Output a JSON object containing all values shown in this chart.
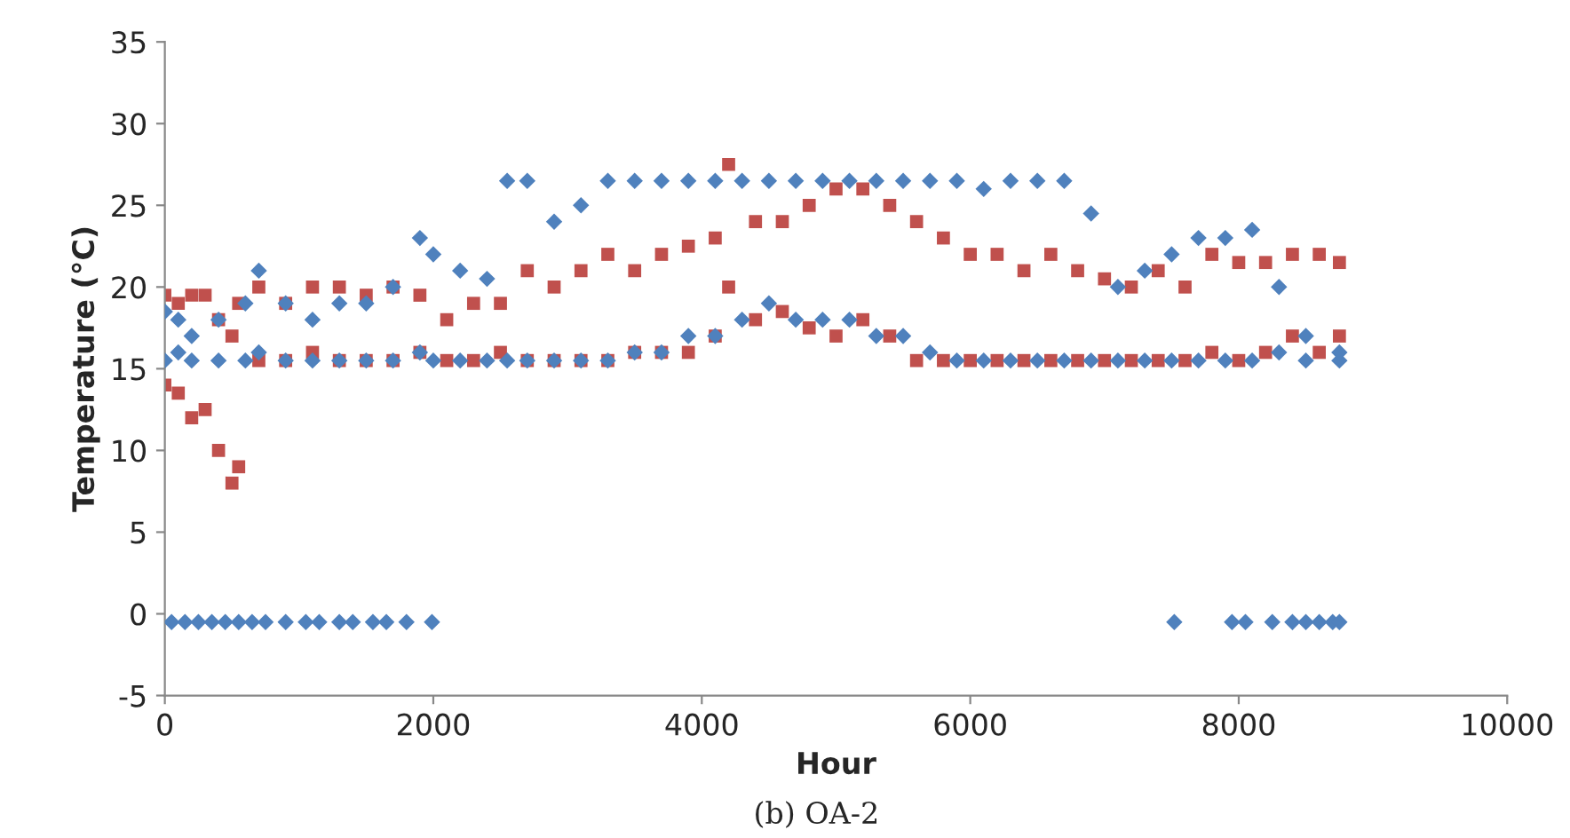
{
  "chart_data": {
    "type": "scatter",
    "xlabel": "Hour",
    "ylabel": "Temperature (°C)",
    "annotations": [
      "(b) OA-2"
    ],
    "xlim": [
      0,
      10000
    ],
    "xticks": [
      0,
      2000,
      4000,
      6000,
      8000,
      10000
    ],
    "ylim": [
      -5,
      35
    ],
    "yticks": [
      -5,
      0,
      5,
      10,
      15,
      20,
      25,
      30,
      35
    ],
    "grid": false,
    "legend": false,
    "series": [
      {
        "color": "#c0504d",
        "marker": "square",
        "x": [
          0,
          0,
          100,
          100,
          200,
          200,
          300,
          300,
          400,
          400,
          500,
          500,
          550,
          550,
          700,
          700,
          900,
          900,
          1100,
          1100,
          1300,
          1300,
          1500,
          1500,
          1700,
          1700,
          1900,
          1900,
          2100,
          2100,
          2300,
          2300,
          2500,
          2500,
          2700,
          2700,
          2900,
          2900,
          3100,
          3100,
          3300,
          3300,
          3500,
          3500,
          3700,
          3700,
          3900,
          3900,
          4100,
          4100,
          4200,
          4200,
          4400,
          4400,
          4600,
          4600,
          4800,
          4800,
          5000,
          5000,
          5200,
          5200,
          5400,
          5400,
          5600,
          5600,
          5800,
          5800,
          6000,
          6000,
          6200,
          6200,
          6400,
          6400,
          6600,
          6600,
          6800,
          6800,
          7000,
          7000,
          7200,
          7200,
          7400,
          7400,
          7600,
          7600,
          7800,
          7800,
          8000,
          8000,
          8200,
          8200,
          8400,
          8400,
          8600,
          8600,
          8750,
          8750
        ],
        "values": [
          14,
          19.5,
          13.5,
          19,
          12,
          19.5,
          12.5,
          19.5,
          10,
          18,
          8,
          17,
          9,
          19,
          15.5,
          20,
          15.5,
          19,
          16,
          20,
          15.5,
          20,
          15.5,
          19.5,
          15.5,
          20,
          16,
          19.5,
          15.5,
          18,
          15.5,
          19,
          16,
          19,
          15.5,
          21,
          15.5,
          20,
          15.5,
          21,
          15.5,
          22,
          16,
          21,
          16,
          22,
          16,
          22.5,
          17,
          23,
          20,
          27.5,
          18,
          24,
          18.5,
          24,
          17.5,
          25,
          17,
          26,
          18,
          26,
          17,
          25,
          15.5,
          24,
          15.5,
          23,
          15.5,
          22,
          15.5,
          22,
          15.5,
          21,
          15.5,
          22,
          15.5,
          21,
          15.5,
          20.5,
          15.5,
          20,
          15.5,
          21,
          15.5,
          20,
          16,
          22,
          15.5,
          21.5,
          16,
          21.5,
          17,
          22,
          16,
          22,
          17,
          21.5
        ]
      },
      {
        "color": "#4f81bd",
        "marker": "diamond",
        "x": [
          0,
          0,
          100,
          100,
          200,
          200,
          400,
          400,
          600,
          600,
          700,
          700,
          900,
          900,
          1100,
          1100,
          1300,
          1300,
          1500,
          1500,
          1700,
          1700,
          1900,
          1900,
          2000,
          2000,
          2200,
          2200,
          2400,
          2400,
          2550,
          2550,
          2700,
          2700,
          2900,
          2900,
          3100,
          3100,
          3300,
          3300,
          3500,
          3500,
          3700,
          3700,
          3900,
          3900,
          4100,
          4100,
          4300,
          4300,
          4500,
          4500,
          4700,
          4700,
          4900,
          4900,
          5100,
          5100,
          5300,
          5300,
          5500,
          5500,
          5700,
          5700,
          5900,
          5900,
          6100,
          6100,
          6300,
          6300,
          6500,
          6500,
          6700,
          6700,
          6900,
          6900,
          7100,
          7100,
          7300,
          7300,
          7500,
          7500,
          7700,
          7700,
          7900,
          7900,
          8100,
          8100,
          8300,
          8300,
          8500,
          8500,
          8750,
          8750,
          50,
          150,
          250,
          350,
          450,
          550,
          650,
          750,
          900,
          1050,
          1150,
          1300,
          1400,
          1550,
          1650,
          1800,
          1990,
          7520,
          7950,
          8050,
          8250,
          8400,
          8500,
          8600,
          8700,
          8750
        ],
        "values": [
          15.5,
          18.5,
          16,
          18,
          15.5,
          17,
          15.5,
          18,
          15.5,
          19,
          16,
          21,
          15.5,
          19,
          15.5,
          18,
          15.5,
          19,
          15.5,
          19,
          15.5,
          20,
          16,
          23,
          15.5,
          22,
          15.5,
          21,
          15.5,
          20.5,
          15.5,
          26.5,
          15.5,
          26.5,
          15.5,
          24,
          15.5,
          25,
          15.5,
          26.5,
          16,
          26.5,
          16,
          26.5,
          17,
          26.5,
          17,
          26.5,
          18,
          26.5,
          19,
          26.5,
          18,
          26.5,
          18,
          26.5,
          18,
          26.5,
          17,
          26.5,
          17,
          26.5,
          16,
          26.5,
          15.5,
          26.5,
          15.5,
          26,
          15.5,
          26.5,
          15.5,
          26.5,
          15.5,
          26.5,
          15.5,
          24.5,
          15.5,
          20,
          15.5,
          21,
          15.5,
          22,
          15.5,
          23,
          15.5,
          23,
          15.5,
          23.5,
          16,
          20,
          15.5,
          17,
          15.5,
          16,
          -0.5,
          -0.5,
          -0.5,
          -0.5,
          -0.5,
          -0.5,
          -0.5,
          -0.5,
          -0.5,
          -0.5,
          -0.5,
          -0.5,
          -0.5,
          -0.5,
          -0.5,
          -0.5,
          -0.5,
          -0.5,
          -0.5,
          -0.5,
          -0.5,
          -0.5,
          -0.5,
          -0.5,
          -0.5,
          -0.5
        ]
      }
    ]
  }
}
